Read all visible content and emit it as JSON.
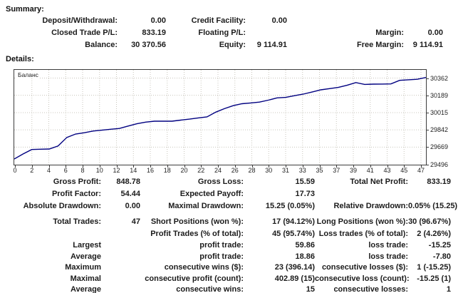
{
  "summary": {
    "title": "Summary:",
    "grid": [
      [
        "Deposit/Withdrawal:",
        "0.00",
        "Credit Facility:",
        "0.00",
        "",
        ""
      ],
      [
        "Closed Trade P/L:",
        "833.19",
        "Floating P/L:",
        "",
        "Margin:",
        "0.00"
      ],
      [
        "Balance:",
        "30 370.56",
        "Equity:",
        "9 114.91",
        "Free Margin:",
        "9 114.91"
      ]
    ]
  },
  "details": {
    "title": "Details:",
    "grid_top": [
      [
        "Gross Profit:",
        "848.78",
        "Gross Loss:",
        "15.59",
        "Total Net Profit:",
        "833.19"
      ],
      [
        "Profit Factor:",
        "54.44",
        "Expected Payoff:",
        "17.73",
        "",
        ""
      ],
      [
        "Absolute Drawdown:",
        "0.00",
        "Maximal Drawdown:",
        "15.25 (0.05%)",
        "Relative Drawdown:",
        "0.05% (15.25)"
      ]
    ],
    "grid_mid": [
      [
        "Total Trades:",
        "47",
        "Short Positions (won %):",
        "17 (94.12%)",
        "Long Positions (won %):",
        "30 (96.67%)"
      ],
      [
        "",
        "",
        "Profit Trades (% of total):",
        "45 (95.74%)",
        "Loss trades (% of total):",
        "2 (4.26%)"
      ]
    ],
    "grid_bottom": [
      [
        "Largest",
        "",
        "profit trade:",
        "59.86",
        "loss trade:",
        "-15.25"
      ],
      [
        "Average",
        "",
        "profit trade:",
        "18.86",
        "loss trade:",
        "-7.80"
      ],
      [
        "Maximum",
        "",
        "consecutive wins ($):",
        "23 (396.14)",
        "consecutive losses ($):",
        "1 (-15.25)"
      ],
      [
        "Maximal",
        "",
        "consecutive profit (count):",
        "402.89 (15)",
        "consecutive loss (count):",
        "-15.25 (1)"
      ],
      [
        "Average",
        "",
        "consecutive wins:",
        "15",
        "consecutive losses:",
        "1"
      ]
    ]
  },
  "chart_data": {
    "type": "line",
    "title": "Баланс",
    "x_note": "x = closed trade number, 0 to 47",
    "series": [
      {
        "name": "Баланс",
        "values": [
          29550,
          29600,
          29645,
          29648,
          29650,
          29680,
          29766,
          29800,
          29813,
          29830,
          29839,
          29848,
          29856,
          29880,
          29903,
          29920,
          29929,
          29929,
          29929,
          29940,
          29950,
          29962,
          29972,
          30020,
          30055,
          30085,
          30104,
          30112,
          30121,
          30140,
          30163,
          30168,
          30185,
          30201,
          30222,
          30244,
          30256,
          30268,
          30290,
          30317,
          30298,
          30301,
          30302,
          30303,
          30339,
          30345,
          30350,
          30368
        ]
      }
    ],
    "x_tick_labels": [
      "0",
      "2",
      "4",
      "6",
      "8",
      "10",
      "12",
      "14",
      "16",
      "18",
      "20",
      "22",
      "24",
      "26",
      "28",
      "30",
      "31",
      "33",
      "35",
      "37",
      "39",
      "41",
      "43",
      "45",
      "47"
    ],
    "y_ticks": [
      29496,
      29669,
      29842,
      30015,
      30189,
      30362
    ],
    "ylim": [
      29496,
      30430
    ],
    "grid": true,
    "legend_position": "top-left",
    "colors": {
      "line": "#000080",
      "grid": "#c8c5bc",
      "plot_border": "#3c3c3c",
      "text": "#1b1b1b"
    }
  }
}
